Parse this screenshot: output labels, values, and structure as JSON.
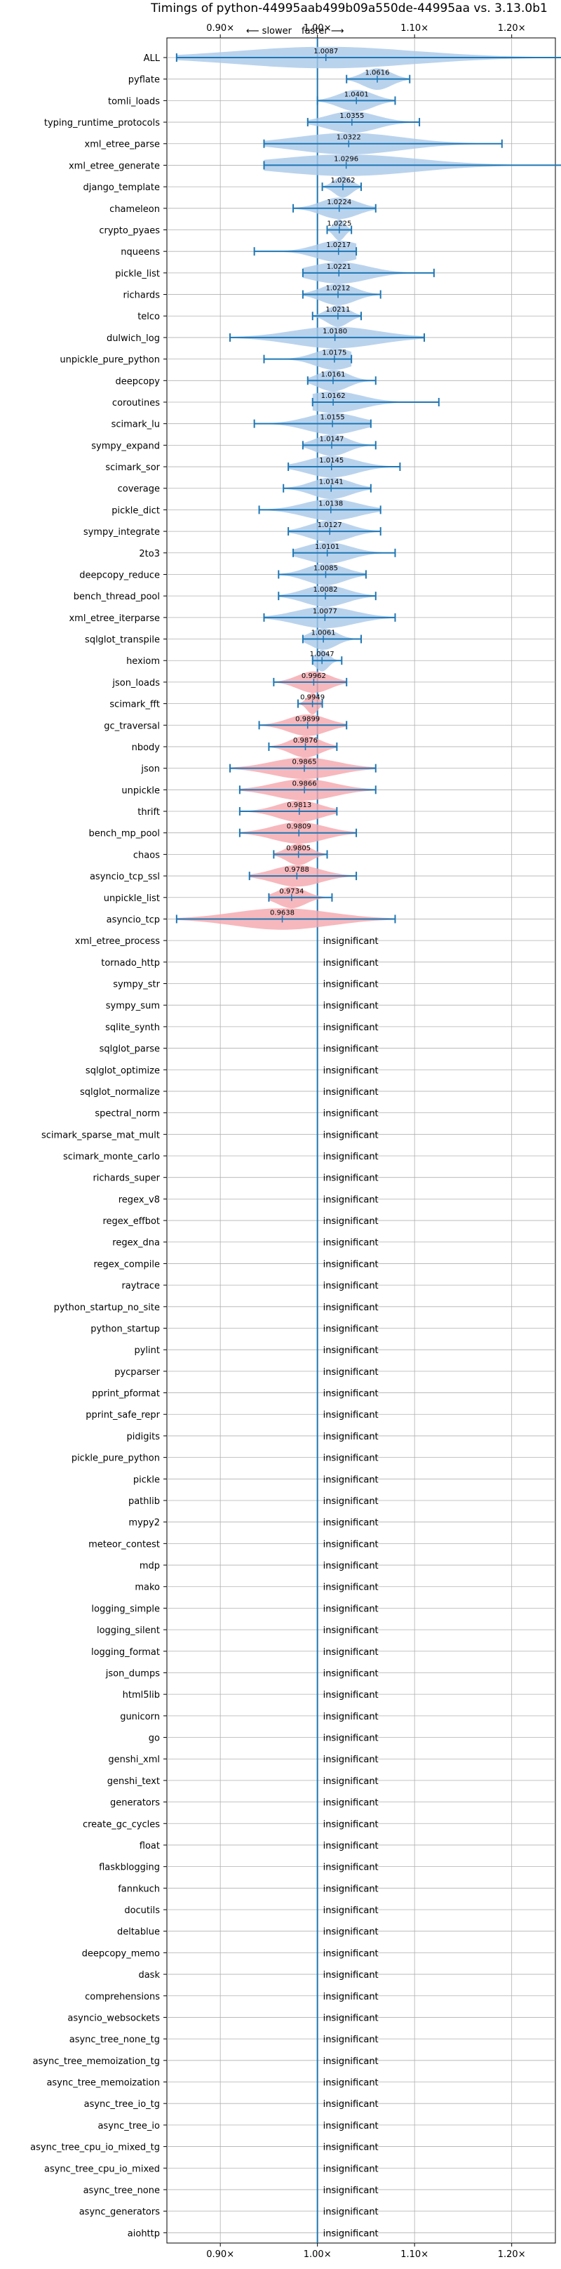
{
  "chart_data": {
    "type": "violin",
    "title": "Timings of python-44995aab499b09a550de-44995aa vs. 3.13.0b1",
    "direction": {
      "left": "⟵ slower",
      "right": "faster ⟶"
    },
    "xlim": [
      0.845,
      1.245
    ],
    "xticks": [
      0.9,
      1.0,
      1.1,
      1.2
    ],
    "xtick_labels": [
      "0.90×",
      "1.00×",
      "1.10×",
      "1.20×"
    ],
    "grid": true,
    "colors": {
      "faster": "#a9c8e8",
      "slower": "#f4a6ad",
      "line": "#1f77b4",
      "grid": "#b0b0b0"
    },
    "insignificant_text": "insignificant",
    "benchmarks": [
      {
        "name": "ALL",
        "value": 1.0087,
        "label": "1.0087",
        "lo": 0.855,
        "hi": 1.27,
        "sig": true
      },
      {
        "name": "pyflate",
        "value": 1.0616,
        "label": "1.0616",
        "lo": 1.03,
        "hi": 1.095,
        "sig": true
      },
      {
        "name": "tomli_loads",
        "value": 1.0401,
        "label": "1.0401",
        "lo": 1.0,
        "hi": 1.08,
        "sig": true
      },
      {
        "name": "typing_runtime_protocols",
        "value": 1.0355,
        "label": "1.0355",
        "lo": 0.99,
        "hi": 1.105,
        "sig": true
      },
      {
        "name": "xml_etree_parse",
        "value": 1.0322,
        "label": "1.0322",
        "lo": 0.945,
        "hi": 1.19,
        "sig": true
      },
      {
        "name": "xml_etree_generate",
        "value": 1.0296,
        "label": "1.0296",
        "lo": 0.945,
        "hi": 1.27,
        "sig": true
      },
      {
        "name": "django_template",
        "value": 1.0262,
        "label": "1.0262",
        "lo": 1.005,
        "hi": 1.045,
        "sig": true
      },
      {
        "name": "chameleon",
        "value": 1.0224,
        "label": "1.0224",
        "lo": 0.975,
        "hi": 1.06,
        "sig": true
      },
      {
        "name": "crypto_pyaes",
        "value": 1.0225,
        "label": "1.0225",
        "lo": 1.01,
        "hi": 1.035,
        "sig": true
      },
      {
        "name": "nqueens",
        "value": 1.0217,
        "label": "1.0217",
        "lo": 0.935,
        "hi": 1.04,
        "sig": true
      },
      {
        "name": "pickle_list",
        "value": 1.0221,
        "label": "1.0221",
        "lo": 0.985,
        "hi": 1.12,
        "sig": true
      },
      {
        "name": "richards",
        "value": 1.0212,
        "label": "1.0212",
        "lo": 0.985,
        "hi": 1.065,
        "sig": true
      },
      {
        "name": "telco",
        "value": 1.0211,
        "label": "1.0211",
        "lo": 0.995,
        "hi": 1.045,
        "sig": true
      },
      {
        "name": "dulwich_log",
        "value": 1.018,
        "label": "1.0180",
        "lo": 0.91,
        "hi": 1.11,
        "sig": true
      },
      {
        "name": "unpickle_pure_python",
        "value": 1.0175,
        "label": "1.0175",
        "lo": 0.945,
        "hi": 1.035,
        "sig": true
      },
      {
        "name": "deepcopy",
        "value": 1.0161,
        "label": "1.0161",
        "lo": 0.99,
        "hi": 1.06,
        "sig": true
      },
      {
        "name": "coroutines",
        "value": 1.0162,
        "label": "1.0162",
        "lo": 0.995,
        "hi": 1.125,
        "sig": true
      },
      {
        "name": "scimark_lu",
        "value": 1.0155,
        "label": "1.0155",
        "lo": 0.935,
        "hi": 1.055,
        "sig": true
      },
      {
        "name": "sympy_expand",
        "value": 1.0147,
        "label": "1.0147",
        "lo": 0.985,
        "hi": 1.06,
        "sig": true
      },
      {
        "name": "scimark_sor",
        "value": 1.0145,
        "label": "1.0145",
        "lo": 0.97,
        "hi": 1.085,
        "sig": true
      },
      {
        "name": "coverage",
        "value": 1.0141,
        "label": "1.0141",
        "lo": 0.965,
        "hi": 1.055,
        "sig": true
      },
      {
        "name": "pickle_dict",
        "value": 1.0138,
        "label": "1.0138",
        "lo": 0.94,
        "hi": 1.065,
        "sig": true
      },
      {
        "name": "sympy_integrate",
        "value": 1.0127,
        "label": "1.0127",
        "lo": 0.97,
        "hi": 1.065,
        "sig": true
      },
      {
        "name": "2to3",
        "value": 1.0101,
        "label": "1.0101",
        "lo": 0.975,
        "hi": 1.08,
        "sig": true
      },
      {
        "name": "deepcopy_reduce",
        "value": 1.0085,
        "label": "1.0085",
        "lo": 0.96,
        "hi": 1.05,
        "sig": true
      },
      {
        "name": "bench_thread_pool",
        "value": 1.0082,
        "label": "1.0082",
        "lo": 0.96,
        "hi": 1.06,
        "sig": true
      },
      {
        "name": "xml_etree_iterparse",
        "value": 1.0077,
        "label": "1.0077",
        "lo": 0.945,
        "hi": 1.08,
        "sig": true
      },
      {
        "name": "sqlglot_transpile",
        "value": 1.0061,
        "label": "1.0061",
        "lo": 0.985,
        "hi": 1.045,
        "sig": true
      },
      {
        "name": "hexiom",
        "value": 1.0047,
        "label": "1.0047",
        "lo": 0.995,
        "hi": 1.025,
        "sig": true
      },
      {
        "name": "json_loads",
        "value": 0.9962,
        "label": "0.9962",
        "lo": 0.955,
        "hi": 1.03,
        "sig": true
      },
      {
        "name": "scimark_fft",
        "value": 0.9949,
        "label": "0.9949",
        "lo": 0.98,
        "hi": 1.005,
        "sig": true
      },
      {
        "name": "gc_traversal",
        "value": 0.9899,
        "label": "0.9899",
        "lo": 0.94,
        "hi": 1.03,
        "sig": true
      },
      {
        "name": "nbody",
        "value": 0.9876,
        "label": "0.9876",
        "lo": 0.95,
        "hi": 1.02,
        "sig": true
      },
      {
        "name": "json",
        "value": 0.9865,
        "label": "0.9865",
        "lo": 0.91,
        "hi": 1.06,
        "sig": true
      },
      {
        "name": "unpickle",
        "value": 0.9866,
        "label": "0.9866",
        "lo": 0.92,
        "hi": 1.06,
        "sig": true
      },
      {
        "name": "thrift",
        "value": 0.9813,
        "label": "0.9813",
        "lo": 0.92,
        "hi": 1.02,
        "sig": true
      },
      {
        "name": "bench_mp_pool",
        "value": 0.9809,
        "label": "0.9809",
        "lo": 0.92,
        "hi": 1.04,
        "sig": true
      },
      {
        "name": "chaos",
        "value": 0.9805,
        "label": "0.9805",
        "lo": 0.955,
        "hi": 1.01,
        "sig": true
      },
      {
        "name": "asyncio_tcp_ssl",
        "value": 0.9788,
        "label": "0.9788",
        "lo": 0.93,
        "hi": 1.04,
        "sig": true
      },
      {
        "name": "unpickle_list",
        "value": 0.9734,
        "label": "0.9734",
        "lo": 0.95,
        "hi": 1.015,
        "sig": true
      },
      {
        "name": "asyncio_tcp",
        "value": 0.9638,
        "label": "0.9638",
        "lo": 0.855,
        "hi": 1.08,
        "sig": true
      },
      {
        "name": "xml_etree_process",
        "sig": false
      },
      {
        "name": "tornado_http",
        "sig": false
      },
      {
        "name": "sympy_str",
        "sig": false
      },
      {
        "name": "sympy_sum",
        "sig": false
      },
      {
        "name": "sqlite_synth",
        "sig": false
      },
      {
        "name": "sqlglot_parse",
        "sig": false
      },
      {
        "name": "sqlglot_optimize",
        "sig": false
      },
      {
        "name": "sqlglot_normalize",
        "sig": false
      },
      {
        "name": "spectral_norm",
        "sig": false
      },
      {
        "name": "scimark_sparse_mat_mult",
        "sig": false
      },
      {
        "name": "scimark_monte_carlo",
        "sig": false
      },
      {
        "name": "richards_super",
        "sig": false
      },
      {
        "name": "regex_v8",
        "sig": false
      },
      {
        "name": "regex_effbot",
        "sig": false
      },
      {
        "name": "regex_dna",
        "sig": false
      },
      {
        "name": "regex_compile",
        "sig": false
      },
      {
        "name": "raytrace",
        "sig": false
      },
      {
        "name": "python_startup_no_site",
        "sig": false
      },
      {
        "name": "python_startup",
        "sig": false
      },
      {
        "name": "pylint",
        "sig": false
      },
      {
        "name": "pycparser",
        "sig": false
      },
      {
        "name": "pprint_pformat",
        "sig": false
      },
      {
        "name": "pprint_safe_repr",
        "sig": false
      },
      {
        "name": "pidigits",
        "sig": false
      },
      {
        "name": "pickle_pure_python",
        "sig": false
      },
      {
        "name": "pickle",
        "sig": false
      },
      {
        "name": "pathlib",
        "sig": false
      },
      {
        "name": "mypy2",
        "sig": false
      },
      {
        "name": "meteor_contest",
        "sig": false
      },
      {
        "name": "mdp",
        "sig": false
      },
      {
        "name": "mako",
        "sig": false
      },
      {
        "name": "logging_simple",
        "sig": false
      },
      {
        "name": "logging_silent",
        "sig": false
      },
      {
        "name": "logging_format",
        "sig": false
      },
      {
        "name": "json_dumps",
        "sig": false
      },
      {
        "name": "html5lib",
        "sig": false
      },
      {
        "name": "gunicorn",
        "sig": false
      },
      {
        "name": "go",
        "sig": false
      },
      {
        "name": "genshi_xml",
        "sig": false
      },
      {
        "name": "genshi_text",
        "sig": false
      },
      {
        "name": "generators",
        "sig": false
      },
      {
        "name": "create_gc_cycles",
        "sig": false
      },
      {
        "name": "float",
        "sig": false
      },
      {
        "name": "flaskblogging",
        "sig": false
      },
      {
        "name": "fannkuch",
        "sig": false
      },
      {
        "name": "docutils",
        "sig": false
      },
      {
        "name": "deltablue",
        "sig": false
      },
      {
        "name": "deepcopy_memo",
        "sig": false
      },
      {
        "name": "dask",
        "sig": false
      },
      {
        "name": "comprehensions",
        "sig": false
      },
      {
        "name": "asyncio_websockets",
        "sig": false
      },
      {
        "name": "async_tree_none_tg",
        "sig": false
      },
      {
        "name": "async_tree_memoization_tg",
        "sig": false
      },
      {
        "name": "async_tree_memoization",
        "sig": false
      },
      {
        "name": "async_tree_io_tg",
        "sig": false
      },
      {
        "name": "async_tree_io",
        "sig": false
      },
      {
        "name": "async_tree_cpu_io_mixed_tg",
        "sig": false
      },
      {
        "name": "async_tree_cpu_io_mixed",
        "sig": false
      },
      {
        "name": "async_tree_none",
        "sig": false
      },
      {
        "name": "async_generators",
        "sig": false
      },
      {
        "name": "aiohttp",
        "sig": false
      }
    ]
  }
}
